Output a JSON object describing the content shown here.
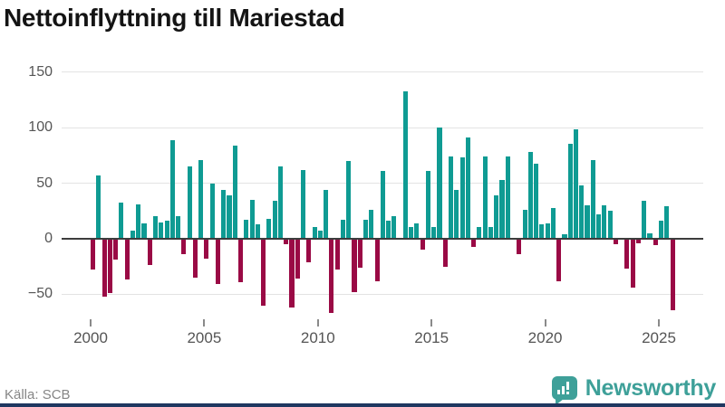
{
  "title": "Nettoinflyttning till Mariestad",
  "source": "Källa: SCB",
  "brand": {
    "name": "Newsworthy"
  },
  "colors": {
    "positive": "#0f9b93",
    "negative": "#9a0a45",
    "grid": "#e3e3e3",
    "zero_line": "#3d3d3d",
    "brand_teal": "#3ea099",
    "brand_navy": "#1f3760"
  },
  "chart_data": {
    "type": "bar",
    "title": "Nettoinflyttning till Mariestad",
    "frequency": "quarterly",
    "x_range": [
      "2000 Q1",
      "2025 Q3"
    ],
    "ylim": [
      -70,
      155
    ],
    "grid": true,
    "legend": "none",
    "y_ticks": [
      {
        "label": "150",
        "value": 150
      },
      {
        "label": "100",
        "value": 100
      },
      {
        "label": "50",
        "value": 50
      },
      {
        "label": "0",
        "value": 0
      },
      {
        "label": "−50",
        "value": -50
      }
    ],
    "x_tick_labels": [
      "2000",
      "2005",
      "2010",
      "2015",
      "2020",
      "2025"
    ],
    "series": [
      {
        "name": "Nettoinflyttning",
        "data": [
          {
            "year": 2000,
            "quarters": [
              -28,
              57,
              -52,
              -49
            ]
          },
          {
            "year": 2001,
            "quarters": [
              -19,
              33,
              -37,
              7
            ]
          },
          {
            "year": 2002,
            "quarters": [
              31,
              14,
              -24,
              20
            ]
          },
          {
            "year": 2003,
            "quarters": [
              15,
              16,
              89,
              20
            ]
          },
          {
            "year": 2004,
            "quarters": [
              -14,
              65,
              -35,
              71
            ]
          },
          {
            "year": 2005,
            "quarters": [
              -18,
              50,
              -41,
              44
            ]
          },
          {
            "year": 2006,
            "quarters": [
              39,
              84,
              -39,
              17
            ]
          },
          {
            "year": 2007,
            "quarters": [
              35,
              13,
              -60,
              18
            ]
          },
          {
            "year": 2008,
            "quarters": [
              34,
              65,
              -5,
              -62
            ]
          },
          {
            "year": 2009,
            "quarters": [
              -36,
              62,
              -21,
              11
            ]
          },
          {
            "year": 2010,
            "quarters": [
              7,
              44,
              -67,
              -28
            ]
          },
          {
            "year": 2011,
            "quarters": [
              17,
              70,
              -48,
              -26
            ]
          },
          {
            "year": 2012,
            "quarters": [
              17,
              26,
              -38,
              61
            ]
          },
          {
            "year": 2013,
            "quarters": [
              16,
              20,
              0,
              133
            ]
          },
          {
            "year": 2014,
            "quarters": [
              11,
              14,
              -10,
              61
            ]
          },
          {
            "year": 2015,
            "quarters": [
              11,
              100,
              -25,
              74
            ]
          },
          {
            "year": 2016,
            "quarters": [
              44,
              73,
              91,
              -7
            ]
          },
          {
            "year": 2017,
            "quarters": [
              11,
              74,
              11,
              39
            ]
          },
          {
            "year": 2018,
            "quarters": [
              53,
              74,
              0,
              -14
            ]
          },
          {
            "year": 2019,
            "quarters": [
              26,
              78,
              68,
              13
            ]
          },
          {
            "year": 2020,
            "quarters": [
              14,
              28,
              -38,
              4
            ]
          },
          {
            "year": 2021,
            "quarters": [
              86,
              99,
              48,
              30
            ]
          },
          {
            "year": 2022,
            "quarters": [
              71,
              22,
              30,
              25
            ]
          },
          {
            "year": 2023,
            "quarters": [
              -5,
              0,
              -27,
              -44
            ]
          },
          {
            "year": 2024,
            "quarters": [
              -4,
              34,
              5,
              -6
            ]
          },
          {
            "year": 2025,
            "quarters": [
              16,
              29,
              -64
            ]
          }
        ]
      }
    ]
  }
}
